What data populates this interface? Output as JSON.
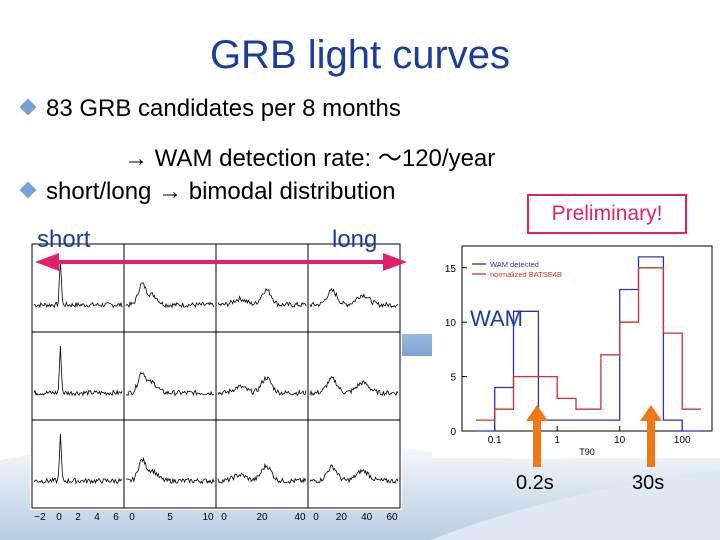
{
  "slide": {
    "title": "GRB light curves",
    "bullets": [
      {
        "text": "83 GRB candidates per 8 months"
      },
      {
        "text": "short/long → bimodal distribution"
      }
    ],
    "sub_bullet": "→ WAM detection rate: ～120/year",
    "label_short": "short",
    "label_long": "long",
    "preliminary": "Preliminary!",
    "wam_label": "WAM",
    "durations": [
      "0.2s",
      "30s"
    ],
    "colors": {
      "title": "#1a3f9a",
      "accent": "#e0206a",
      "arrow": "#f07818",
      "bullet": "#7aa0d8"
    }
  },
  "light_curve_grid": {
    "rows": 3,
    "cols": 4,
    "x_tick_labels": [
      [
        "−2",
        "0",
        "2",
        "4",
        "6"
      ],
      [
        "0",
        "5",
        "10"
      ],
      [
        "0",
        "20",
        "40"
      ],
      [
        "0",
        "20",
        "40",
        "60"
      ]
    ]
  },
  "chart_data": {
    "type": "line",
    "xlabel": "T90",
    "x_scale": "log",
    "xlim": [
      0.03,
      300
    ],
    "ylim": [
      0,
      17
    ],
    "y_ticks": [
      0,
      5,
      10,
      15
    ],
    "x_ticks": [
      0.1,
      1,
      10,
      100
    ],
    "x_tick_labels": [
      "0.1",
      "1",
      "10",
      "100"
    ],
    "legend_position": "top-left",
    "series": [
      {
        "name": "WAM detected",
        "color": "#3030c0",
        "x": [
          0.05,
          0.1,
          0.2,
          0.5,
          1,
          2,
          5,
          10,
          20,
          50,
          100
        ],
        "values": [
          0,
          4,
          11,
          1,
          1,
          1,
          1,
          13,
          16,
          1,
          0
        ]
      },
      {
        "name": "normalized BATSE4B",
        "color": "#d03030",
        "x": [
          0.05,
          0.1,
          0.2,
          0.5,
          1,
          2,
          5,
          10,
          20,
          50,
          100
        ],
        "values": [
          1,
          2,
          5,
          5,
          3,
          2,
          7,
          10,
          15,
          9,
          2
        ]
      }
    ]
  }
}
